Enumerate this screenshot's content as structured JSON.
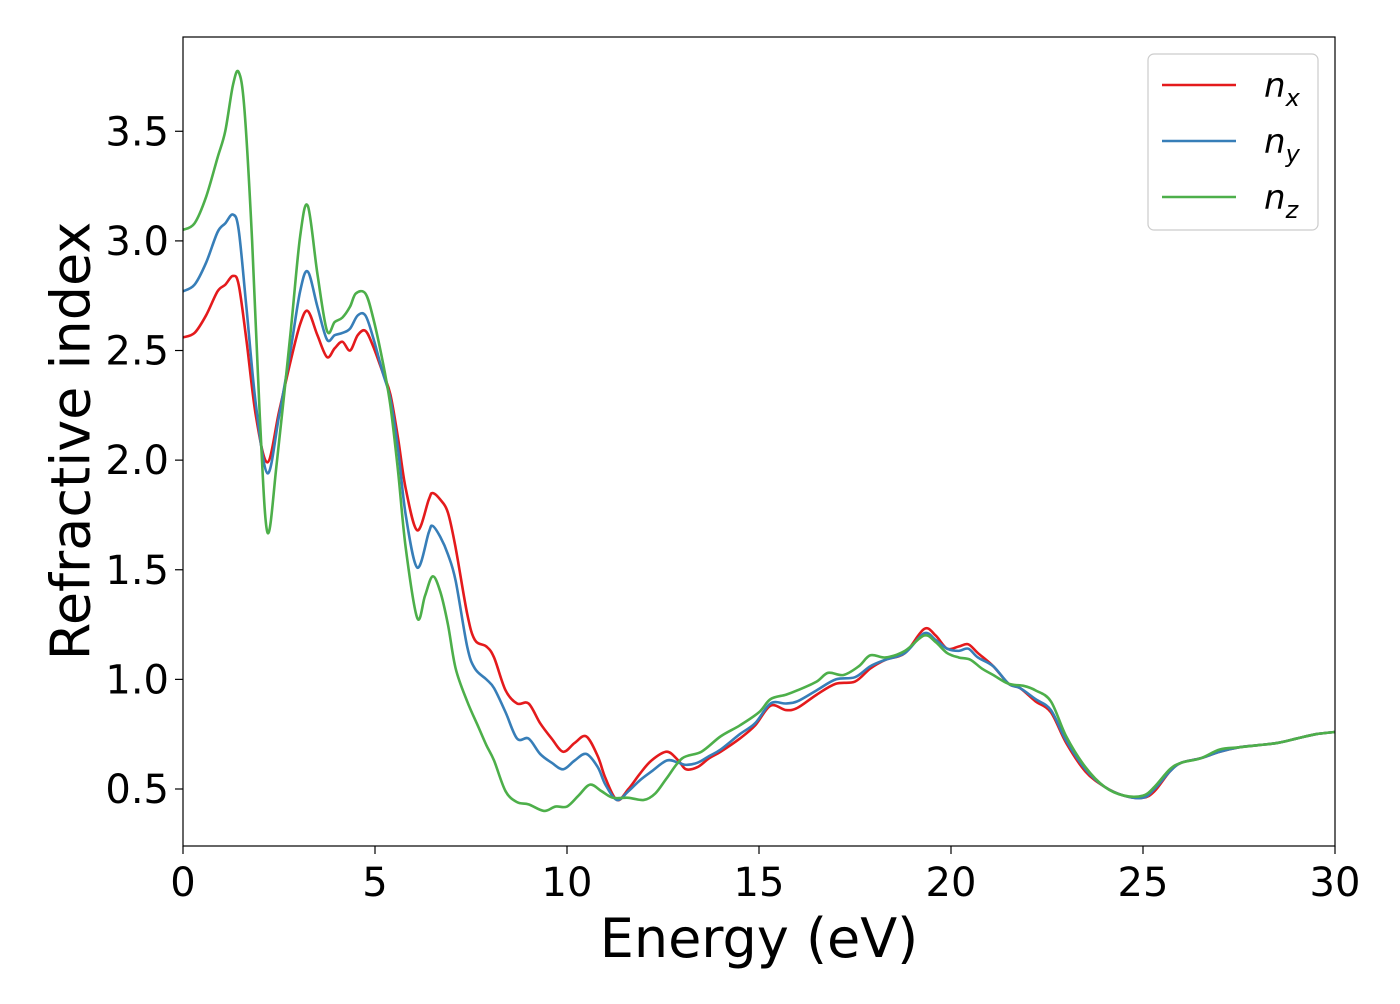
{
  "chart_data": {
    "type": "line",
    "title": "",
    "xlabel": "Energy (eV)",
    "ylabel": "Refractive index",
    "xlim": [
      0,
      30
    ],
    "ylim": [
      0.24,
      3.93
    ],
    "xticks": [
      0,
      5,
      10,
      15,
      20,
      25,
      30
    ],
    "xtick_labels": [
      "0",
      "5",
      "10",
      "15",
      "20",
      "25",
      "30"
    ],
    "yticks": [
      0.5,
      1.0,
      1.5,
      2.0,
      2.5,
      3.0,
      3.5
    ],
    "ytick_labels": [
      "0.5",
      "1.0",
      "1.5",
      "2.0",
      "2.5",
      "3.0",
      "3.5"
    ],
    "grid": false,
    "legend": {
      "position": "top-right",
      "entries": [
        {
          "base": "n",
          "sub": "x",
          "color": "#e41a1c"
        },
        {
          "base": "n",
          "sub": "y",
          "color": "#377eb8"
        },
        {
          "base": "n",
          "sub": "z",
          "color": "#4daf4a"
        }
      ]
    },
    "series": [
      {
        "name": "n_x",
        "color": "#e41a1c",
        "points": [
          [
            0,
            2.56
          ],
          [
            0.3,
            2.58
          ],
          [
            0.6,
            2.66
          ],
          [
            0.9,
            2.77
          ],
          [
            1.1,
            2.8
          ],
          [
            1.3,
            2.84
          ],
          [
            1.45,
            2.8
          ],
          [
            1.65,
            2.55
          ],
          [
            1.9,
            2.2
          ],
          [
            2.2,
            1.99
          ],
          [
            2.5,
            2.22
          ],
          [
            2.8,
            2.45
          ],
          [
            3.05,
            2.62
          ],
          [
            3.25,
            2.68
          ],
          [
            3.5,
            2.57
          ],
          [
            3.75,
            2.47
          ],
          [
            3.95,
            2.51
          ],
          [
            4.15,
            2.54
          ],
          [
            4.35,
            2.5
          ],
          [
            4.55,
            2.57
          ],
          [
            4.75,
            2.59
          ],
          [
            4.95,
            2.52
          ],
          [
            5.2,
            2.4
          ],
          [
            5.4,
            2.3
          ],
          [
            5.6,
            2.1
          ],
          [
            5.8,
            1.87
          ],
          [
            6.1,
            1.68
          ],
          [
            6.4,
            1.82
          ],
          [
            6.5,
            1.85
          ],
          [
            6.7,
            1.82
          ],
          [
            6.9,
            1.76
          ],
          [
            7.1,
            1.6
          ],
          [
            7.4,
            1.3
          ],
          [
            7.6,
            1.18
          ],
          [
            7.9,
            1.15
          ],
          [
            8.1,
            1.1
          ],
          [
            8.4,
            0.95
          ],
          [
            8.7,
            0.89
          ],
          [
            9.0,
            0.89
          ],
          [
            9.3,
            0.8
          ],
          [
            9.6,
            0.73
          ],
          [
            9.9,
            0.67
          ],
          [
            10.2,
            0.71
          ],
          [
            10.5,
            0.74
          ],
          [
            10.8,
            0.65
          ],
          [
            11.0,
            0.55
          ],
          [
            11.3,
            0.45
          ],
          [
            11.6,
            0.5
          ],
          [
            11.9,
            0.57
          ],
          [
            12.2,
            0.63
          ],
          [
            12.6,
            0.67
          ],
          [
            12.9,
            0.63
          ],
          [
            13.1,
            0.59
          ],
          [
            13.4,
            0.6
          ],
          [
            13.7,
            0.64
          ],
          [
            14.0,
            0.67
          ],
          [
            14.5,
            0.73
          ],
          [
            14.9,
            0.79
          ],
          [
            15.3,
            0.88
          ],
          [
            15.7,
            0.86
          ],
          [
            16.0,
            0.87
          ],
          [
            16.5,
            0.93
          ],
          [
            17.0,
            0.98
          ],
          [
            17.5,
            0.99
          ],
          [
            17.9,
            1.05
          ],
          [
            18.3,
            1.09
          ],
          [
            18.8,
            1.12
          ],
          [
            19.3,
            1.23
          ],
          [
            19.6,
            1.2
          ],
          [
            19.9,
            1.14
          ],
          [
            20.2,
            1.15
          ],
          [
            20.45,
            1.16
          ],
          [
            20.7,
            1.12
          ],
          [
            21.1,
            1.06
          ],
          [
            21.5,
            0.98
          ],
          [
            21.8,
            0.96
          ],
          [
            22.2,
            0.9
          ],
          [
            22.6,
            0.85
          ],
          [
            23.0,
            0.71
          ],
          [
            23.5,
            0.58
          ],
          [
            24.0,
            0.51
          ],
          [
            24.5,
            0.47
          ],
          [
            25.0,
            0.46
          ],
          [
            25.3,
            0.49
          ],
          [
            25.7,
            0.58
          ],
          [
            26.0,
            0.62
          ],
          [
            26.5,
            0.64
          ],
          [
            27.0,
            0.67
          ],
          [
            27.5,
            0.69
          ],
          [
            28.0,
            0.7
          ],
          [
            28.5,
            0.71
          ],
          [
            29.0,
            0.73
          ],
          [
            29.5,
            0.75
          ],
          [
            30.0,
            0.76
          ]
        ]
      },
      {
        "name": "n_y",
        "color": "#377eb8",
        "points": [
          [
            0,
            2.77
          ],
          [
            0.3,
            2.8
          ],
          [
            0.6,
            2.9
          ],
          [
            0.9,
            3.04
          ],
          [
            1.1,
            3.08
          ],
          [
            1.3,
            3.12
          ],
          [
            1.45,
            3.05
          ],
          [
            1.65,
            2.7
          ],
          [
            1.9,
            2.25
          ],
          [
            2.2,
            1.94
          ],
          [
            2.5,
            2.2
          ],
          [
            2.8,
            2.5
          ],
          [
            3.05,
            2.77
          ],
          [
            3.25,
            2.86
          ],
          [
            3.5,
            2.7
          ],
          [
            3.75,
            2.55
          ],
          [
            3.95,
            2.57
          ],
          [
            4.15,
            2.58
          ],
          [
            4.35,
            2.6
          ],
          [
            4.55,
            2.66
          ],
          [
            4.75,
            2.66
          ],
          [
            4.95,
            2.56
          ],
          [
            5.2,
            2.4
          ],
          [
            5.4,
            2.28
          ],
          [
            5.6,
            2.05
          ],
          [
            5.8,
            1.75
          ],
          [
            6.1,
            1.51
          ],
          [
            6.4,
            1.67
          ],
          [
            6.5,
            1.7
          ],
          [
            6.7,
            1.65
          ],
          [
            6.9,
            1.57
          ],
          [
            7.1,
            1.45
          ],
          [
            7.4,
            1.15
          ],
          [
            7.6,
            1.05
          ],
          [
            7.9,
            1.0
          ],
          [
            8.1,
            0.96
          ],
          [
            8.4,
            0.85
          ],
          [
            8.7,
            0.73
          ],
          [
            9.0,
            0.73
          ],
          [
            9.3,
            0.66
          ],
          [
            9.6,
            0.62
          ],
          [
            9.9,
            0.59
          ],
          [
            10.2,
            0.63
          ],
          [
            10.5,
            0.66
          ],
          [
            10.8,
            0.6
          ],
          [
            11.0,
            0.52
          ],
          [
            11.3,
            0.45
          ],
          [
            11.6,
            0.49
          ],
          [
            11.9,
            0.54
          ],
          [
            12.2,
            0.58
          ],
          [
            12.6,
            0.63
          ],
          [
            12.9,
            0.62
          ],
          [
            13.1,
            0.61
          ],
          [
            13.4,
            0.62
          ],
          [
            13.7,
            0.65
          ],
          [
            14.0,
            0.68
          ],
          [
            14.5,
            0.75
          ],
          [
            14.9,
            0.8
          ],
          [
            15.3,
            0.89
          ],
          [
            15.7,
            0.89
          ],
          [
            16.0,
            0.9
          ],
          [
            16.5,
            0.95
          ],
          [
            17.0,
            1.0
          ],
          [
            17.5,
            1.01
          ],
          [
            17.9,
            1.06
          ],
          [
            18.3,
            1.09
          ],
          [
            18.8,
            1.12
          ],
          [
            19.3,
            1.21
          ],
          [
            19.6,
            1.18
          ],
          [
            19.9,
            1.14
          ],
          [
            20.2,
            1.13
          ],
          [
            20.45,
            1.14
          ],
          [
            20.7,
            1.1
          ],
          [
            21.1,
            1.06
          ],
          [
            21.5,
            0.98
          ],
          [
            21.8,
            0.96
          ],
          [
            22.2,
            0.91
          ],
          [
            22.6,
            0.86
          ],
          [
            23.0,
            0.72
          ],
          [
            23.5,
            0.59
          ],
          [
            24.0,
            0.51
          ],
          [
            24.5,
            0.47
          ],
          [
            25.0,
            0.46
          ],
          [
            25.3,
            0.5
          ],
          [
            25.7,
            0.58
          ],
          [
            26.0,
            0.62
          ],
          [
            26.5,
            0.64
          ],
          [
            27.0,
            0.67
          ],
          [
            27.5,
            0.69
          ],
          [
            28.0,
            0.7
          ],
          [
            28.5,
            0.71
          ],
          [
            29.0,
            0.73
          ],
          [
            29.5,
            0.75
          ],
          [
            30.0,
            0.76
          ]
        ]
      },
      {
        "name": "n_z",
        "color": "#4daf4a",
        "points": [
          [
            0,
            3.05
          ],
          [
            0.3,
            3.08
          ],
          [
            0.6,
            3.2
          ],
          [
            0.9,
            3.38
          ],
          [
            1.1,
            3.5
          ],
          [
            1.3,
            3.71
          ],
          [
            1.45,
            3.77
          ],
          [
            1.6,
            3.6
          ],
          [
            1.8,
            3.0
          ],
          [
            2.0,
            2.2
          ],
          [
            2.2,
            1.67
          ],
          [
            2.45,
            2.0
          ],
          [
            2.8,
            2.58
          ],
          [
            3.05,
            3.02
          ],
          [
            3.25,
            3.16
          ],
          [
            3.5,
            2.85
          ],
          [
            3.75,
            2.59
          ],
          [
            3.95,
            2.63
          ],
          [
            4.15,
            2.65
          ],
          [
            4.35,
            2.7
          ],
          [
            4.5,
            2.76
          ],
          [
            4.75,
            2.76
          ],
          [
            4.95,
            2.65
          ],
          [
            5.2,
            2.45
          ],
          [
            5.4,
            2.25
          ],
          [
            5.6,
            1.95
          ],
          [
            5.8,
            1.6
          ],
          [
            6.1,
            1.28
          ],
          [
            6.3,
            1.38
          ],
          [
            6.5,
            1.47
          ],
          [
            6.7,
            1.4
          ],
          [
            6.9,
            1.25
          ],
          [
            7.1,
            1.05
          ],
          [
            7.4,
            0.9
          ],
          [
            7.7,
            0.78
          ],
          [
            7.9,
            0.7
          ],
          [
            8.1,
            0.63
          ],
          [
            8.4,
            0.49
          ],
          [
            8.7,
            0.44
          ],
          [
            9.0,
            0.43
          ],
          [
            9.4,
            0.4
          ],
          [
            9.7,
            0.42
          ],
          [
            10.0,
            0.42
          ],
          [
            10.3,
            0.47
          ],
          [
            10.6,
            0.52
          ],
          [
            10.9,
            0.49
          ],
          [
            11.2,
            0.46
          ],
          [
            11.6,
            0.46
          ],
          [
            12.0,
            0.45
          ],
          [
            12.3,
            0.48
          ],
          [
            12.6,
            0.55
          ],
          [
            13.0,
            0.64
          ],
          [
            13.5,
            0.67
          ],
          [
            14.0,
            0.74
          ],
          [
            14.5,
            0.79
          ],
          [
            15.0,
            0.85
          ],
          [
            15.3,
            0.91
          ],
          [
            15.7,
            0.93
          ],
          [
            16.0,
            0.95
          ],
          [
            16.5,
            0.99
          ],
          [
            16.8,
            1.03
          ],
          [
            17.2,
            1.02
          ],
          [
            17.6,
            1.06
          ],
          [
            17.9,
            1.11
          ],
          [
            18.3,
            1.1
          ],
          [
            18.8,
            1.13
          ],
          [
            19.3,
            1.2
          ],
          [
            19.6,
            1.17
          ],
          [
            19.9,
            1.12
          ],
          [
            20.2,
            1.1
          ],
          [
            20.5,
            1.09
          ],
          [
            20.8,
            1.05
          ],
          [
            21.1,
            1.02
          ],
          [
            21.5,
            0.98
          ],
          [
            21.9,
            0.97
          ],
          [
            22.2,
            0.95
          ],
          [
            22.6,
            0.9
          ],
          [
            23.0,
            0.74
          ],
          [
            23.5,
            0.6
          ],
          [
            24.0,
            0.51
          ],
          [
            24.5,
            0.47
          ],
          [
            25.0,
            0.47
          ],
          [
            25.3,
            0.51
          ],
          [
            25.7,
            0.59
          ],
          [
            26.0,
            0.62
          ],
          [
            26.5,
            0.64
          ],
          [
            27.0,
            0.68
          ],
          [
            27.5,
            0.69
          ],
          [
            28.0,
            0.7
          ],
          [
            28.5,
            0.71
          ],
          [
            29.0,
            0.73
          ],
          [
            29.5,
            0.75
          ],
          [
            30.0,
            0.76
          ]
        ]
      }
    ]
  }
}
